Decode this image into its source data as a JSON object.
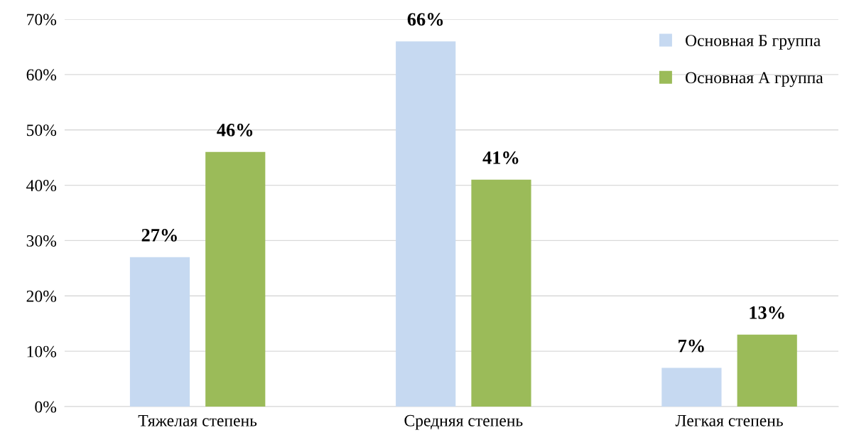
{
  "chart_data": {
    "type": "bar",
    "categories": [
      "Тяжелая степень",
      "Средняя степень",
      "Легкая степень"
    ],
    "series": [
      {
        "name": "Основная Б группа",
        "color": "#c6d9f1",
        "values": [
          27,
          66,
          7
        ],
        "value_labels": [
          "27%",
          "66%",
          "7%"
        ]
      },
      {
        "name": "Основная А группа",
        "color": "#9bbb59",
        "values": [
          46,
          41,
          13
        ],
        "value_labels": [
          "46%",
          "41%",
          "13%"
        ]
      }
    ],
    "ylim": [
      0,
      70
    ],
    "yticks": [
      {
        "value": 0,
        "label": "0%"
      },
      {
        "value": 10,
        "label": "10%"
      },
      {
        "value": 20,
        "label": "20%"
      },
      {
        "value": 30,
        "label": "30%"
      },
      {
        "value": 40,
        "label": "40%"
      },
      {
        "value": 50,
        "label": "50%"
      },
      {
        "value": 60,
        "label": "60%"
      },
      {
        "value": 70,
        "label": "70%"
      }
    ],
    "grid": "y",
    "legend": "top right"
  }
}
